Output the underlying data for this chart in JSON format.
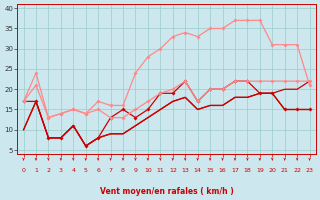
{
  "xlabel": "Vent moyen/en rafales ( km/h )",
  "bg_color": "#cce8ee",
  "grid_color": "#99cccc",
  "x_ticks": [
    0,
    1,
    2,
    3,
    4,
    5,
    6,
    7,
    8,
    9,
    10,
    11,
    12,
    13,
    14,
    15,
    16,
    17,
    18,
    19,
    20,
    21,
    22,
    23
  ],
  "y_ticks": [
    5,
    10,
    15,
    20,
    25,
    30,
    35,
    40
  ],
  "xlim": [
    -0.5,
    23.5
  ],
  "ylim": [
    4,
    41
  ],
  "series": [
    {
      "x": [
        0,
        1,
        2,
        3,
        4,
        5,
        6,
        7,
        8,
        9,
        10,
        11,
        12,
        13,
        14,
        15,
        16,
        17,
        18,
        19,
        20,
        21,
        22,
        23
      ],
      "y": [
        17,
        17,
        8,
        8,
        11,
        6,
        8,
        13,
        15,
        13,
        15,
        19,
        19,
        22,
        17,
        20,
        20,
        22,
        22,
        19,
        19,
        15,
        15,
        15
      ],
      "color": "#cc0000",
      "lw": 0.9,
      "marker": "D",
      "ms": 1.8,
      "zorder": 3
    },
    {
      "x": [
        0,
        1,
        2,
        3,
        4,
        5,
        6,
        7,
        8,
        9,
        10,
        11,
        12,
        13,
        14,
        15,
        16,
        17,
        18,
        19,
        20,
        21,
        22,
        23
      ],
      "y": [
        10,
        17,
        8,
        8,
        11,
        6,
        8,
        9,
        9,
        11,
        13,
        15,
        17,
        18,
        15,
        16,
        16,
        18,
        18,
        19,
        19,
        15,
        15,
        15
      ],
      "color": "#cc0000",
      "lw": 0.9,
      "marker": null,
      "ms": 0,
      "zorder": 2
    },
    {
      "x": [
        0,
        1,
        2,
        3,
        4,
        5,
        6,
        7,
        8,
        9,
        10,
        11,
        12,
        13,
        14,
        15,
        16,
        17,
        18,
        19,
        20,
        21,
        22,
        23
      ],
      "y": [
        17,
        21,
        13,
        14,
        15,
        14,
        15,
        13,
        13,
        15,
        17,
        19,
        20,
        22,
        17,
        20,
        20,
        22,
        22,
        22,
        22,
        22,
        22,
        22
      ],
      "color": "#ff8888",
      "lw": 0.9,
      "marker": "D",
      "ms": 1.8,
      "zorder": 3
    },
    {
      "x": [
        0,
        1,
        2,
        3,
        4,
        5,
        6,
        7,
        8,
        9,
        10,
        11,
        12,
        13,
        14,
        15,
        16,
        17,
        18,
        19,
        20,
        21,
        22,
        23
      ],
      "y": [
        17,
        24,
        13,
        14,
        15,
        14,
        17,
        16,
        16,
        24,
        28,
        30,
        33,
        34,
        33,
        35,
        35,
        37,
        37,
        37,
        31,
        31,
        31,
        21
      ],
      "color": "#ff8888",
      "lw": 0.9,
      "marker": "D",
      "ms": 1.8,
      "zorder": 3
    },
    {
      "x": [
        0,
        1,
        2,
        3,
        4,
        5,
        6,
        7,
        8,
        9,
        10,
        11,
        12,
        13,
        14,
        15,
        16,
        17,
        18,
        19,
        20,
        21,
        22,
        23
      ],
      "y": [
        10,
        17,
        8,
        8,
        11,
        6,
        8,
        9,
        9,
        11,
        13,
        15,
        17,
        18,
        15,
        16,
        16,
        18,
        18,
        19,
        19,
        20,
        20,
        22
      ],
      "color": "#cc0000",
      "lw": 0.9,
      "marker": null,
      "ms": 0,
      "zorder": 2
    }
  ],
  "arrow_color": "#cc0000",
  "tick_label_color": "#cc0000",
  "tick_label_size": 4.5,
  "xlabel_size": 5.5,
  "ylabel_size": 5.0
}
